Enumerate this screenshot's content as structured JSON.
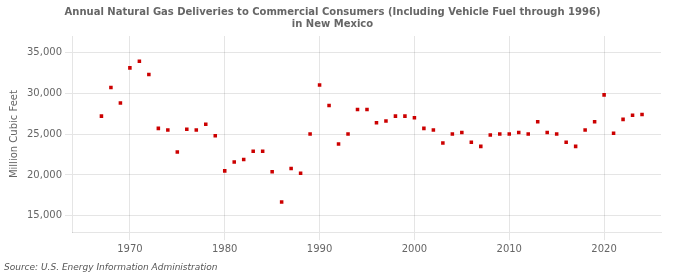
{
  "chart_data": {
    "type": "scatter",
    "title": "Annual Natural Gas Deliveries to Commercial Consumers (Including Vehicle Fuel through 1996)\nin New Mexico",
    "y_label": "Million Cubic Feet",
    "source": "Source: U.S. Energy Information Administration",
    "x": [
      1967,
      1968,
      1969,
      1970,
      1971,
      1972,
      1973,
      1974,
      1975,
      1976,
      1977,
      1978,
      1979,
      1980,
      1981,
      1982,
      1983,
      1984,
      1985,
      1986,
      1987,
      1988,
      1989,
      1990,
      1991,
      1992,
      1993,
      1994,
      1995,
      1996,
      1997,
      1998,
      1999,
      2000,
      2001,
      2002,
      2003,
      2004,
      2005,
      2006,
      2007,
      2008,
      2009,
      2010,
      2011,
      2012,
      2013,
      2014,
      2015,
      2016,
      2017,
      2018,
      2019,
      2020,
      2021,
      2022,
      2023,
      2024
    ],
    "values": [
      27200,
      30700,
      28800,
      33100,
      33900,
      32300,
      25700,
      25500,
      22800,
      25600,
      25500,
      26200,
      24800,
      20500,
      21600,
      21900,
      22900,
      22900,
      20400,
      16700,
      20800,
      20200,
      25000,
      31000,
      28500,
      23800,
      25000,
      28000,
      28000,
      26400,
      26600,
      27200,
      27200,
      27000,
      25700,
      25500,
      23900,
      25000,
      25200,
      24000,
      23500,
      24900,
      25000,
      25000,
      25200,
      25000,
      26500,
      25200,
      25000,
      24000,
      23500,
      25500,
      26500,
      29800,
      25100,
      26800,
      27300,
      27400
    ],
    "color": "#cc0000",
    "marker": "square",
    "xlim": [
      1964,
      2026
    ],
    "xticks": [
      1970,
      1980,
      1990,
      2000,
      2010,
      2020
    ],
    "ylim": [
      13000,
      37000
    ],
    "yticks": [
      {
        "value": 15000,
        "label": "15,000"
      },
      {
        "value": 20000,
        "label": "20,000"
      },
      {
        "value": 25000,
        "label": "25,000"
      },
      {
        "value": 30000,
        "label": "30,000"
      },
      {
        "value": 35000,
        "label": "35,000"
      }
    ],
    "grid": true
  }
}
